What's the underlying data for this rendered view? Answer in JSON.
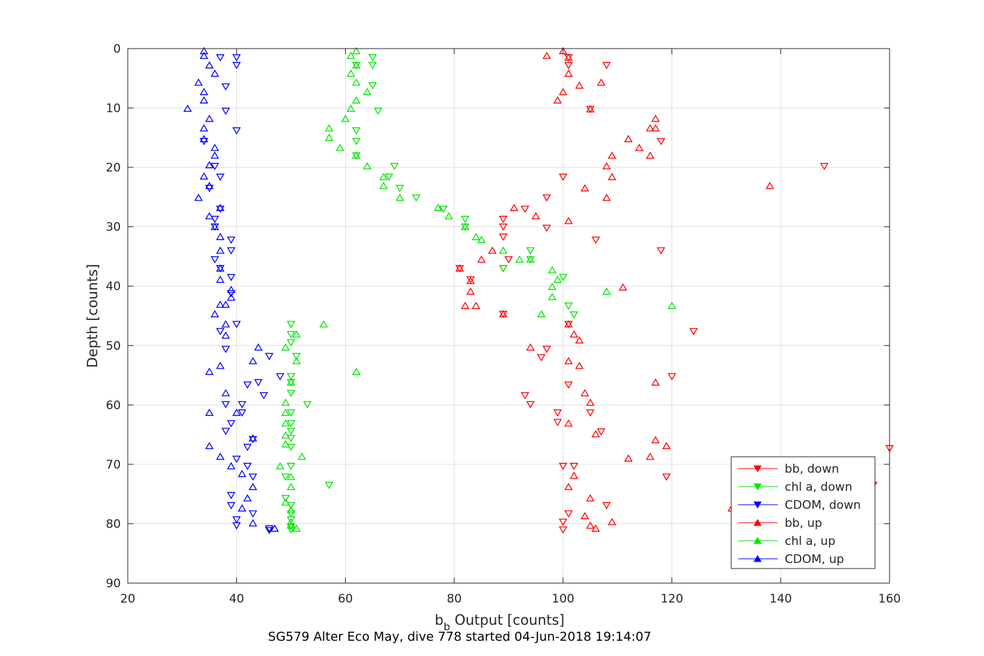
{
  "chart_data": {
    "type": "scatter",
    "title": "",
    "xlabel": "b",
    "xlabel_sub": "b",
    "xlabel_rest": " Output [counts]",
    "ylabel": "Depth [counts]",
    "caption": "SG579 Alter Eco May, dive 778 started 04-Jun-2018 19:14:07",
    "xlim": [
      20,
      160
    ],
    "ylim": [
      0,
      90
    ],
    "y_reversed": true,
    "xticks": [
      20,
      40,
      60,
      80,
      100,
      120,
      140,
      160
    ],
    "yticks": [
      0,
      10,
      20,
      30,
      40,
      50,
      60,
      70,
      80,
      90
    ],
    "grid": true,
    "legend_position": "bottom-right",
    "colors": {
      "bb": "#ff0000",
      "chl": "#00e600",
      "cdom": "#0000ff",
      "axis": "#262626",
      "grid": "#dfdfdf"
    },
    "series": [
      {
        "name": "bb, down",
        "color": "#ff0000",
        "marker": "triangle-down",
        "points": [
          [
            101,
            1.5
          ],
          [
            101,
            2.8
          ],
          [
            108,
            2.8
          ],
          [
            105,
            10.2
          ],
          [
            118,
            15.6
          ],
          [
            148,
            19.8
          ],
          [
            100,
            21.6
          ],
          [
            97,
            25.1
          ],
          [
            93,
            27
          ],
          [
            97,
            30.2
          ],
          [
            89,
            28.7
          ],
          [
            89,
            30
          ],
          [
            89,
            31.7
          ],
          [
            106,
            32.2
          ],
          [
            118,
            34
          ],
          [
            90,
            35.5
          ],
          [
            89,
            37
          ],
          [
            81,
            37
          ],
          [
            83,
            38.9
          ],
          [
            89,
            44.7
          ],
          [
            101,
            46.4
          ],
          [
            124,
            47.6
          ],
          [
            97,
            50.6
          ],
          [
            96,
            52
          ],
          [
            120,
            55.2
          ],
          [
            101,
            56.6
          ],
          [
            93,
            58.4
          ],
          [
            94,
            59.9
          ],
          [
            105,
            61.3
          ],
          [
            99,
            61.3
          ],
          [
            99,
            62.9
          ],
          [
            107,
            64.5
          ],
          [
            160,
            67.3
          ],
          [
            102,
            70.3
          ],
          [
            100,
            70.3
          ],
          [
            119,
            72.1
          ],
          [
            157,
            73.5
          ],
          [
            101,
            78.3
          ],
          [
            108,
            76.9
          ],
          [
            100,
            79.7
          ],
          [
            100,
            81
          ]
        ]
      },
      {
        "name": "chl a, down",
        "color": "#00e600",
        "marker": "triangle-down",
        "points": [
          [
            65,
            1.5
          ],
          [
            65,
            2.8
          ],
          [
            62,
            2.8
          ],
          [
            65,
            6.2
          ],
          [
            66,
            10.5
          ],
          [
            62,
            13.8
          ],
          [
            62,
            15.6
          ],
          [
            62,
            18
          ],
          [
            69,
            19.8
          ],
          [
            68,
            21.6
          ],
          [
            70,
            23.5
          ],
          [
            73,
            25.1
          ],
          [
            78,
            27
          ],
          [
            82,
            28.7
          ],
          [
            82,
            30
          ],
          [
            89,
            37
          ],
          [
            94,
            34
          ],
          [
            94,
            35.5
          ],
          [
            100,
            38.5
          ],
          [
            101,
            43.3
          ],
          [
            102,
            44.8
          ],
          [
            50,
            46.4
          ],
          [
            50,
            48.1
          ],
          [
            50,
            49.5
          ],
          [
            51,
            51.8
          ],
          [
            50,
            55.2
          ],
          [
            50,
            56.2
          ],
          [
            50,
            58
          ],
          [
            53,
            59.9
          ],
          [
            50,
            61.3
          ],
          [
            50,
            63.1
          ],
          [
            50,
            64.4
          ],
          [
            50,
            65.6
          ],
          [
            50,
            67.1
          ],
          [
            50,
            70.3
          ],
          [
            49,
            72.1
          ],
          [
            57,
            73.5
          ],
          [
            49,
            75.7
          ],
          [
            50,
            76.9
          ],
          [
            50,
            78.3
          ],
          [
            50,
            79.3
          ],
          [
            50,
            80.5
          ],
          [
            50,
            81
          ]
        ]
      },
      {
        "name": "CDOM, down",
        "color": "#0000ff",
        "marker": "triangle-down",
        "points": [
          [
            37,
            1.5
          ],
          [
            40,
            1.5
          ],
          [
            40,
            2.8
          ],
          [
            38,
            6.4
          ],
          [
            38,
            10.5
          ],
          [
            40,
            13.8
          ],
          [
            34,
            15.6
          ],
          [
            36,
            19.8
          ],
          [
            37,
            21.6
          ],
          [
            35,
            23.5
          ],
          [
            37,
            27
          ],
          [
            36,
            28.7
          ],
          [
            36,
            30
          ],
          [
            39,
            32.2
          ],
          [
            39,
            34
          ],
          [
            36,
            35.5
          ],
          [
            37,
            37
          ],
          [
            39,
            38.5
          ],
          [
            39,
            41.2
          ],
          [
            40,
            46.4
          ],
          [
            37,
            47.6
          ],
          [
            38,
            50.6
          ],
          [
            46,
            51.8
          ],
          [
            48,
            55.2
          ],
          [
            44,
            56.2
          ],
          [
            42,
            56.6
          ],
          [
            45,
            58.4
          ],
          [
            38,
            59.9
          ],
          [
            41,
            59.9
          ],
          [
            41,
            61.3
          ],
          [
            39,
            63.1
          ],
          [
            38,
            64.4
          ],
          [
            43,
            65.8
          ],
          [
            42,
            67.1
          ],
          [
            40,
            69.1
          ],
          [
            42,
            70.3
          ],
          [
            43,
            72.1
          ],
          [
            39,
            75.2
          ],
          [
            39,
            76.9
          ],
          [
            43,
            78.3
          ],
          [
            40,
            79.3
          ],
          [
            40,
            80.3
          ],
          [
            46,
            80.8
          ],
          [
            46,
            81.1
          ]
        ]
      },
      {
        "name": "bb, up",
        "color": "#ff0000",
        "marker": "triangle-up",
        "points": [
          [
            100,
            0.4
          ],
          [
            97,
            1.2
          ],
          [
            101,
            1.5
          ],
          [
            101,
            4.2
          ],
          [
            107,
            5.7
          ],
          [
            103,
            6.2
          ],
          [
            100,
            7.3
          ],
          [
            99,
            8.7
          ],
          [
            105,
            10.2
          ],
          [
            117,
            11.8
          ],
          [
            117,
            13.4
          ],
          [
            116,
            13.4
          ],
          [
            112,
            15.2
          ],
          [
            114,
            16.7
          ],
          [
            116,
            18
          ],
          [
            109,
            18
          ],
          [
            108,
            19.8
          ],
          [
            109,
            21.6
          ],
          [
            104,
            23.5
          ],
          [
            138,
            23.1
          ],
          [
            108,
            25.1
          ],
          [
            91,
            26.8
          ],
          [
            95,
            28.2
          ],
          [
            101,
            29
          ],
          [
            87,
            34
          ],
          [
            85,
            35.5
          ],
          [
            81,
            37
          ],
          [
            83,
            39.1
          ],
          [
            111,
            40.2
          ],
          [
            83,
            40.9
          ],
          [
            82,
            43.3
          ],
          [
            84,
            43.3
          ],
          [
            89,
            44.7
          ],
          [
            101,
            46.4
          ],
          [
            102,
            48.1
          ],
          [
            103,
            49.1
          ],
          [
            94,
            50.3
          ],
          [
            101,
            52.6
          ],
          [
            103,
            53.4
          ],
          [
            104,
            58
          ],
          [
            105,
            59.6
          ],
          [
            117,
            56.2
          ],
          [
            101,
            63.1
          ],
          [
            106,
            64.9
          ],
          [
            117,
            65.9
          ],
          [
            119,
            66.9
          ],
          [
            116,
            68.7
          ],
          [
            112,
            69
          ],
          [
            102,
            71.9
          ],
          [
            101,
            73.8
          ],
          [
            105,
            75.7
          ],
          [
            104,
            78.7
          ],
          [
            109,
            79.7
          ],
          [
            105,
            80.3
          ],
          [
            106,
            80.8
          ],
          [
            131,
            77.4
          ]
        ]
      },
      {
        "name": "chl a, up",
        "color": "#00e600",
        "marker": "triangle-up",
        "points": [
          [
            62,
            0.4
          ],
          [
            61,
            1.2
          ],
          [
            62,
            2.8
          ],
          [
            61,
            4.2
          ],
          [
            62,
            5.7
          ],
          [
            64,
            7.3
          ],
          [
            62,
            8.7
          ],
          [
            61,
            10.1
          ],
          [
            60,
            11.8
          ],
          [
            57,
            13.4
          ],
          [
            57,
            15
          ],
          [
            59,
            16.7
          ],
          [
            62,
            18
          ],
          [
            64,
            19.8
          ],
          [
            67,
            21.6
          ],
          [
            67,
            23.1
          ],
          [
            70,
            25.1
          ],
          [
            77,
            26.8
          ],
          [
            79,
            28.2
          ],
          [
            82,
            30
          ],
          [
            84,
            31.7
          ],
          [
            85,
            32.2
          ],
          [
            89,
            34
          ],
          [
            92,
            35.5
          ],
          [
            94,
            35.5
          ],
          [
            98,
            37.3
          ],
          [
            99,
            38.9
          ],
          [
            98,
            40.1
          ],
          [
            108,
            40.9
          ],
          [
            98,
            41.8
          ],
          [
            120,
            43.3
          ],
          [
            96,
            44.7
          ],
          [
            56,
            46.4
          ],
          [
            51,
            48.1
          ],
          [
            49,
            50.3
          ],
          [
            51,
            52.6
          ],
          [
            62,
            54.4
          ],
          [
            50,
            56.2
          ],
          [
            49,
            59.6
          ],
          [
            49,
            61.3
          ],
          [
            49,
            63.1
          ],
          [
            49,
            65.1
          ],
          [
            49,
            66.6
          ],
          [
            52,
            68.7
          ],
          [
            48,
            70.3
          ],
          [
            50,
            72.1
          ],
          [
            50,
            73.8
          ],
          [
            49,
            76.4
          ],
          [
            50,
            77.7
          ],
          [
            50,
            79.7
          ],
          [
            50,
            80.3
          ],
          [
            51,
            80.8
          ]
        ]
      },
      {
        "name": "CDOM, up",
        "color": "#0000ff",
        "marker": "triangle-up",
        "points": [
          [
            34,
            0.4
          ],
          [
            34,
            1.2
          ],
          [
            35,
            2.8
          ],
          [
            36,
            4.2
          ],
          [
            33,
            5.7
          ],
          [
            34,
            7.3
          ],
          [
            34,
            8.7
          ],
          [
            31,
            10.1
          ],
          [
            35,
            11.8
          ],
          [
            34,
            13.4
          ],
          [
            34,
            15.2
          ],
          [
            36,
            16.7
          ],
          [
            36,
            18
          ],
          [
            35,
            19.6
          ],
          [
            34,
            21.5
          ],
          [
            35,
            23.1
          ],
          [
            33,
            25.1
          ],
          [
            37,
            26.8
          ],
          [
            35,
            28.2
          ],
          [
            36,
            30
          ],
          [
            37,
            31.7
          ],
          [
            37,
            34
          ],
          [
            37,
            37
          ],
          [
            37,
            38.9
          ],
          [
            39,
            40.6
          ],
          [
            39,
            41.9
          ],
          [
            37,
            43.1
          ],
          [
            38,
            43.1
          ],
          [
            36,
            44.7
          ],
          [
            38,
            46.4
          ],
          [
            38,
            48.3
          ],
          [
            44,
            50.3
          ],
          [
            43,
            52.6
          ],
          [
            37,
            53.4
          ],
          [
            35,
            54.4
          ],
          [
            38,
            58
          ],
          [
            35,
            61.3
          ],
          [
            40,
            61.3
          ],
          [
            43,
            65.6
          ],
          [
            35,
            66.9
          ],
          [
            37,
            68.7
          ],
          [
            39,
            70.3
          ],
          [
            41,
            71.6
          ],
          [
            43,
            73.8
          ],
          [
            42,
            75.7
          ],
          [
            41,
            77.4
          ],
          [
            43,
            79.9
          ],
          [
            47,
            80.8
          ]
        ]
      }
    ],
    "legend": [
      {
        "label": "bb, down",
        "color": "#ff0000",
        "marker": "triangle-down"
      },
      {
        "label": "chl a, down",
        "color": "#00e600",
        "marker": "triangle-down"
      },
      {
        "label": "CDOM, down",
        "color": "#0000ff",
        "marker": "triangle-down"
      },
      {
        "label": "bb, up",
        "color": "#ff0000",
        "marker": "triangle-up"
      },
      {
        "label": "chl a, up",
        "color": "#00e600",
        "marker": "triangle-up"
      },
      {
        "label": "CDOM, up",
        "color": "#0000ff",
        "marker": "triangle-up"
      }
    ]
  }
}
